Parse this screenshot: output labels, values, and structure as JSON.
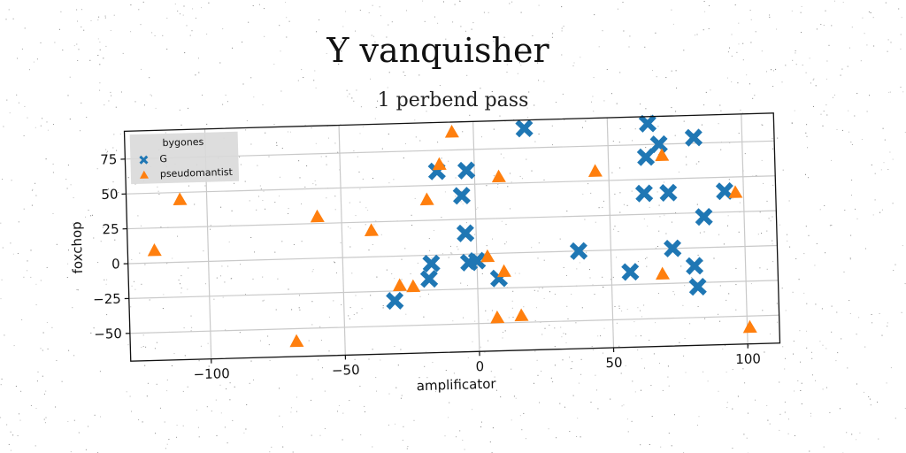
{
  "chart_data": {
    "type": "scatter",
    "title": "Y vanquisher",
    "subtitle": "1 perbend pass",
    "xlabel": "amplificator",
    "ylabel": "foxchop",
    "xlim": [
      -130,
      112
    ],
    "ylim": [
      -70,
      95
    ],
    "xticks": [
      -100,
      -50,
      0,
      50,
      100
    ],
    "yticks": [
      -50,
      -25,
      0,
      25,
      50,
      75
    ],
    "xtick_labels": [
      "−100",
      "−50",
      "0",
      "50",
      "100"
    ],
    "ytick_labels": [
      "−50",
      "−25",
      "0",
      "25",
      "50",
      "75"
    ],
    "grid": true,
    "legend": {
      "title": "bygones",
      "position": "top-left",
      "entries": [
        "G",
        "pseudomantist"
      ]
    },
    "series": [
      {
        "name": "G",
        "marker": "x-filled",
        "color": "#1f77b4",
        "points": [
          [
            19,
            89
          ],
          [
            65,
            90
          ],
          [
            69,
            75
          ],
          [
            64,
            66
          ],
          [
            82,
            79
          ],
          [
            -14,
            60
          ],
          [
            -3,
            60
          ],
          [
            -5,
            42
          ],
          [
            63,
            40
          ],
          [
            72,
            40
          ],
          [
            93,
            40
          ],
          [
            85,
            22
          ],
          [
            -4,
            15
          ],
          [
            38,
            0
          ],
          [
            73,
            0
          ],
          [
            -17,
            -6
          ],
          [
            -3,
            -6
          ],
          [
            0,
            -5
          ],
          [
            8,
            -18
          ],
          [
            -18,
            -17
          ],
          [
            57,
            -16
          ],
          [
            81,
            -13
          ],
          [
            82,
            -28
          ],
          [
            -31,
            -32
          ]
        ]
      },
      {
        "name": "pseudomantist",
        "marker": "triangle",
        "color": "#ff7f0e",
        "points": [
          [
            -8,
            88
          ],
          [
            -13,
            65
          ],
          [
            70,
            67
          ],
          [
            9,
            55
          ],
          [
            45,
            57
          ],
          [
            -110,
            45
          ],
          [
            -18,
            40
          ],
          [
            97,
            39
          ],
          [
            -59,
            30
          ],
          [
            -39,
            19
          ],
          [
            -120,
            9
          ],
          [
            4,
            -2
          ],
          [
            10,
            -13
          ],
          [
            -29,
            -21
          ],
          [
            -24,
            -22
          ],
          [
            69,
            -18
          ],
          [
            7,
            -46
          ],
          [
            16,
            -45
          ],
          [
            -68,
            -59
          ],
          [
            101,
            -58
          ]
        ]
      }
    ]
  }
}
